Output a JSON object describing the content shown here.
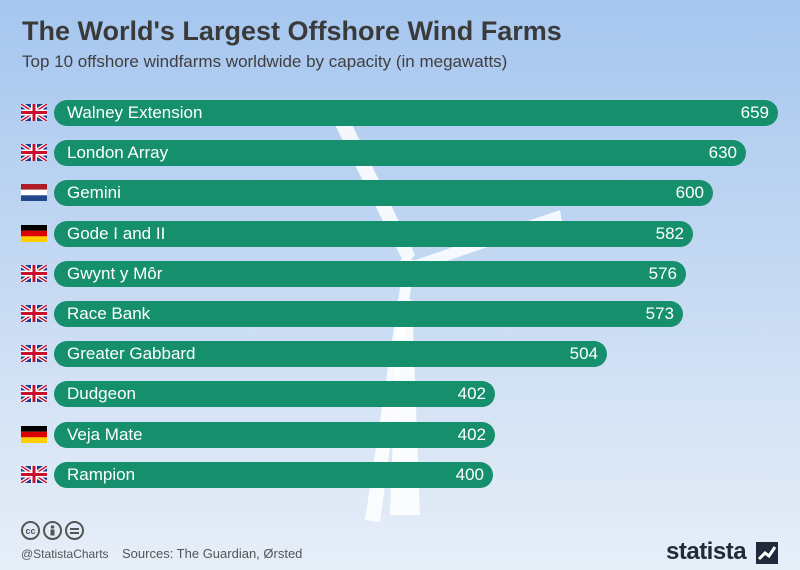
{
  "header": {
    "title": "The World's Largest Offshore Wind Farms",
    "subtitle": "Top 10 offshore windfarms worldwide by capacity (in megawatts)"
  },
  "colors": {
    "bar": "#168f6d",
    "title": "#3a3a3a",
    "background_top": "#a5c6ef",
    "background_bottom": "#e6eef8"
  },
  "chart_data": {
    "type": "bar",
    "orientation": "horizontal",
    "title": "The World's Largest Offshore Wind Farms",
    "subtitle": "Top 10 offshore windfarms worldwide by capacity (in megawatts)",
    "categories": [
      "Walney Extension",
      "London Array",
      "Gemini",
      "Gode I and II",
      "Gwynt y Môr",
      "Race Bank",
      "Greater Gabbard",
      "Dudgeon",
      "Veja Mate",
      "Rampion"
    ],
    "values": [
      659,
      630,
      600,
      582,
      576,
      573,
      504,
      402,
      402,
      400
    ],
    "flags": [
      "uk-flag-icon",
      "uk-flag-icon",
      "netherlands-flag-icon",
      "germany-flag-icon",
      "uk-flag-icon",
      "uk-flag-icon",
      "uk-flag-icon",
      "uk-flag-icon",
      "germany-flag-icon",
      "uk-flag-icon"
    ],
    "data_labels": true,
    "grid": false,
    "legend": "none"
  },
  "footer": {
    "handle": "@StatistaCharts",
    "sources": "Sources: The Guardian, Ørsted",
    "brand": "statista",
    "license_icons": [
      "cc-icon",
      "by-icon",
      "nd-icon"
    ]
  }
}
